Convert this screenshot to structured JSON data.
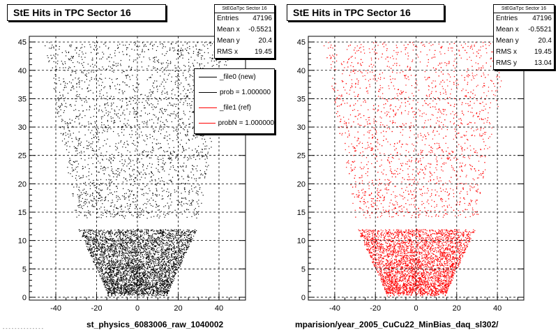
{
  "chart_data": [
    {
      "type": "scatter",
      "title": "StE Hits in TPC Sector 16",
      "xlabel": "st_physics_6083006_raw_1040002",
      "ylabel": "",
      "xlim": [
        -53,
        53
      ],
      "ylim": [
        -0.5,
        46
      ],
      "x_ticks": [
        -40,
        -20,
        0,
        20,
        40
      ],
      "y_ticks": [
        0,
        5,
        10,
        15,
        20,
        25,
        30,
        35,
        40,
        45
      ],
      "grid": true,
      "marker_color": "#000000",
      "stats": {
        "name": "StEGaTpc Sector 16",
        "rows": [
          {
            "label": "Entries",
            "value": "47196"
          },
          {
            "label": "Mean x",
            "value": "-0.5521"
          },
          {
            "label": "Mean y",
            "value": "20.4"
          },
          {
            "label": "RMS x",
            "value": "19.45"
          }
        ]
      },
      "legend": {
        "placement": "top-right",
        "entries": [
          {
            "label": "_file0 (new)",
            "color": "#000000"
          },
          {
            "label": "prob = 1.000000",
            "color": "#000000"
          },
          {
            "label": "_file1 (ref)",
            "color": "#ff0000"
          },
          {
            "label": "probN = 1.000000",
            "color": "#ff0000"
          }
        ]
      }
    },
    {
      "type": "scatter",
      "title": "StE Hits in TPC Sector 16",
      "xlabel": "mparision/year_2005_CuCu22_MinBias_daq_sl302/",
      "ylabel": "",
      "xlim": [
        -53,
        53
      ],
      "ylim": [
        -0.5,
        46
      ],
      "x_ticks": [
        -40,
        -20,
        0,
        20,
        40
      ],
      "y_ticks": [
        0,
        5,
        10,
        15,
        20,
        25,
        30,
        35,
        40,
        45
      ],
      "grid": true,
      "marker_color": "#ff0000",
      "stats": {
        "name": "StEGaTpc Sector 16",
        "rows": [
          {
            "label": "Entries",
            "value": "47196"
          },
          {
            "label": "Mean x",
            "value": "-0.5521"
          },
          {
            "label": "Mean y",
            "value": "20.4"
          },
          {
            "label": "RMS x",
            "value": "19.45"
          },
          {
            "label": "RMS y",
            "value": "13.04"
          }
        ]
      }
    }
  ],
  "footnote": "- - - - - - - - - - - - - -"
}
